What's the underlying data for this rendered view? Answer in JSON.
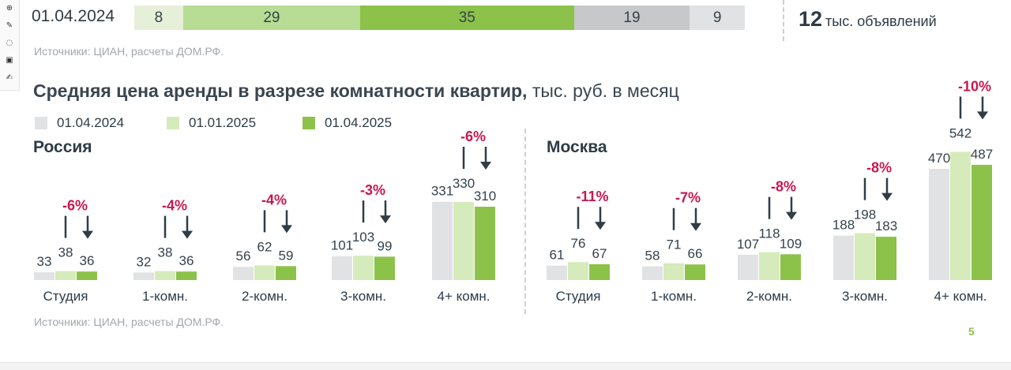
{
  "top_bar": {
    "date": "01.04.2024",
    "segments": [
      {
        "value": "8",
        "color": "#e6efd8"
      },
      {
        "value": "29",
        "color": "#b7dc93"
      },
      {
        "value": "35",
        "color": "#8cc24a"
      },
      {
        "value": "19",
        "color": "#c6c8c9"
      },
      {
        "value": "9",
        "color": "#e1e2e3"
      }
    ],
    "total_value": "12",
    "total_label": "тыс. объявлений",
    "source": "Источники: ЦИАН, расчеты ДОМ.РФ."
  },
  "title_bold": "Средняя цена аренды в разрезе комнатности квартир,",
  "title_normal": " тыс. руб. в месяц",
  "source_bottom": "Источники: ЦИАН, расчеты ДОМ.РФ.",
  "page_number": "5",
  "colors": {
    "series_2024": "#e1e2e3",
    "series_jan2025": "#d5ebbb",
    "series_apr2025": "#8cc24a",
    "change": "#c8174f",
    "arrow": "#2f3d47"
  },
  "chart_data": {
    "type": "bar",
    "legend": [
      "01.04.2024",
      "01.01.2025",
      "01.04.2025"
    ],
    "panels": [
      {
        "region": "Россия",
        "categories": [
          "Студия",
          "1-комн.",
          "2-комн.",
          "3-комн.",
          "4+ комн."
        ],
        "series": [
          {
            "name": "01.04.2024",
            "values": [
              33,
              32,
              56,
              101,
              331
            ]
          },
          {
            "name": "01.01.2025",
            "values": [
              38,
              38,
              62,
              103,
              330
            ]
          },
          {
            "name": "01.04.2025",
            "values": [
              36,
              36,
              59,
              99,
              310
            ]
          }
        ],
        "changes": [
          "-6%",
          "-4%",
          "-4%",
          "-3%",
          "-6%"
        ]
      },
      {
        "region": "Москва",
        "categories": [
          "Студия",
          "1-комн.",
          "2-комн.",
          "3-комн.",
          "4+ комн."
        ],
        "series": [
          {
            "name": "01.04.2024",
            "values": [
              61,
              58,
              107,
              188,
              470
            ]
          },
          {
            "name": "01.01.2025",
            "values": [
              76,
              71,
              118,
              198,
              542
            ]
          },
          {
            "name": "01.04.2025",
            "values": [
              67,
              66,
              109,
              183,
              487
            ]
          }
        ],
        "changes": [
          "-11%",
          "-7%",
          "-8%",
          "-8%",
          "-10%"
        ]
      }
    ]
  }
}
